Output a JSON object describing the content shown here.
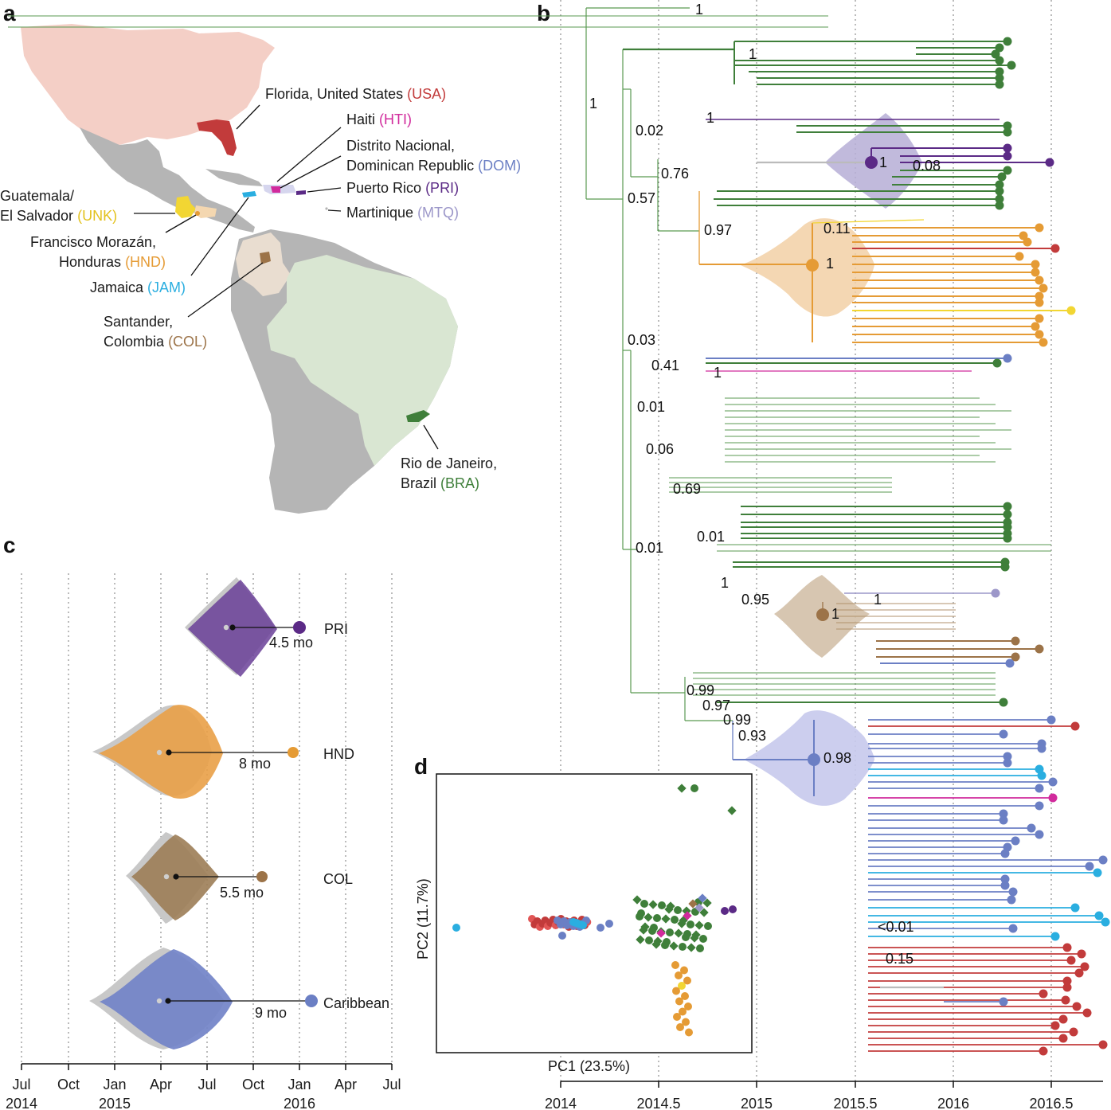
{
  "panels": {
    "a": "a",
    "b": "b",
    "c": "c",
    "d": "d"
  },
  "colors": {
    "USA": "#c23b3b",
    "HTI": "#d12a9c",
    "DOM": "#6b7fc4",
    "PRI": "#5b2a86",
    "MTQ": "#9c97c9",
    "UNK": "#f2d633",
    "HND": "#e59b35",
    "JAM": "#2aaee0",
    "COL": "#9c7348",
    "BRA": "#3f7f3a",
    "Caribbean": "#6b7fc4"
  },
  "map": {
    "labels": [
      {
        "id": "usa",
        "place": "Florida, United States",
        "code": "(USA)",
        "color": "#c23b3b"
      },
      {
        "id": "hti",
        "place": "Haiti",
        "code": "(HTI)",
        "color": "#d12a9c"
      },
      {
        "id": "dom1",
        "place": "Distrito Nacional,",
        "code": "",
        "color": "#6b7fc4"
      },
      {
        "id": "dom2",
        "place": "Dominican Republic",
        "code": "(DOM)",
        "color": "#6b7fc4"
      },
      {
        "id": "pri",
        "place": "Puerto Rico",
        "code": "(PRI)",
        "color": "#5b2a86"
      },
      {
        "id": "mtq",
        "place": "Martinique",
        "code": "(MTQ)",
        "color": "#9c97c9"
      },
      {
        "id": "unk1",
        "place": "Guatemala/",
        "code": "",
        "color": "#e3c21e"
      },
      {
        "id": "unk2",
        "place": "El Salvador",
        "code": "(UNK)",
        "color": "#e3c21e"
      },
      {
        "id": "hnd1",
        "place": "Francisco Morazán,",
        "code": "",
        "color": "#e59b35"
      },
      {
        "id": "hnd2",
        "place": "Honduras",
        "code": "(HND)",
        "color": "#e59b35"
      },
      {
        "id": "jam",
        "place": "Jamaica",
        "code": "(JAM)",
        "color": "#2aaee0"
      },
      {
        "id": "col1",
        "place": "Santander,",
        "code": "",
        "color": "#9c7348"
      },
      {
        "id": "col2",
        "place": "Colombia",
        "code": "(COL)",
        "color": "#9c7348"
      },
      {
        "id": "bra1",
        "place": "Rio de Janeiro,",
        "code": "",
        "color": "#3f7f3a"
      },
      {
        "id": "bra2",
        "place": "Brazil",
        "code": "(BRA)",
        "color": "#3f7f3a"
      }
    ]
  },
  "tree": {
    "x_ticks": [
      "2014",
      "2014.5",
      "2015",
      "2015.5",
      "2016",
      "2016.5"
    ],
    "supports": [
      "1",
      "1",
      "1",
      "0.02",
      "1",
      "0.08",
      "0.76",
      "0.57",
      "0.97",
      "0.11",
      "1",
      "0.03",
      "0.41",
      "1",
      "0.01",
      "0.06",
      "0.69",
      "0.01",
      "0.01",
      "1",
      "0.95",
      "1",
      "1",
      "0.99",
      "0.97",
      "0.99",
      "0.93",
      "0.98",
      "<0.01",
      "0.15"
    ]
  },
  "chart_data": [
    {
      "type": "violin",
      "panel": "c",
      "x_ticks": [
        {
          "month": "Jul",
          "year": "2014"
        },
        {
          "month": "Oct",
          "year": ""
        },
        {
          "month": "Jan",
          "year": "2015"
        },
        {
          "month": "Apr",
          "year": ""
        },
        {
          "month": "Jul",
          "year": ""
        },
        {
          "month": "Oct",
          "year": ""
        },
        {
          "month": "Jan",
          "year": "2016"
        },
        {
          "month": "Apr",
          "year": ""
        },
        {
          "month": "Jul",
          "year": ""
        }
      ],
      "series": [
        {
          "name": "PRI",
          "lag": "4.5 mo",
          "color": "#5b2a86"
        },
        {
          "name": "HND",
          "lag": "8 mo",
          "color": "#e59b35"
        },
        {
          "name": "COL",
          "lag": "5.5 mo",
          "color": "#9c7348"
        },
        {
          "name": "Caribbean",
          "lag": "9 mo",
          "color": "#6b7fc4"
        }
      ]
    },
    {
      "type": "scatter",
      "panel": "d",
      "xlabel": "PC1 (23.5%)",
      "ylabel": "PC2 (11.7%)"
    }
  ]
}
